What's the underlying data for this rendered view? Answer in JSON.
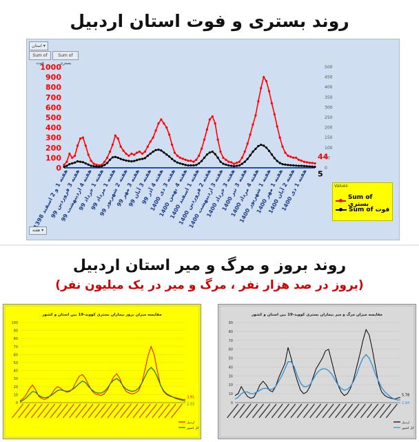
{
  "top": {
    "title": "روند بستری و فوت استان اردبیل",
    "filter_button": "استان ▾",
    "series_buttons": [
      "Sum of فوت",
      "Sum of بستری"
    ],
    "bottom_button": "هفته ▾",
    "legend": {
      "header": "Values",
      "items": [
        {
          "label": "Sum of بستری",
          "color": "#ff0000"
        },
        {
          "label": "Sum of فوت",
          "color": "#000000"
        }
      ]
    }
  },
  "chart_data": [
    {
      "type": "line",
      "title": "روند بستری و فوت استان اردبیل",
      "ylim_left": [
        0,
        1000
      ],
      "yticks_left": [
        0,
        100,
        200,
        300,
        400,
        500,
        600,
        700,
        800,
        900,
        1000
      ],
      "ylim_right": [
        0,
        500
      ],
      "yticks_right": [
        0,
        50,
        100,
        150,
        200,
        250,
        300,
        350,
        400,
        450,
        500
      ],
      "grid": false,
      "legend_position": "bottom-right",
      "x_tick_labels": [
        "1398 هفته 1 و 2 اسفند",
        "99 هفته 3 فروردین",
        "99 هفته 4 اردیبهشت",
        "99 هفته 1 خرداد",
        "99 هفته 1 مرداد",
        "99 هفته 2 شهریور",
        "99 هفته 3 مهر",
        "99 هفته 3 آبان",
        "99 هفته 4 آذر",
        "1400 هفته 3 دی",
        "1400 هفته 4 بهمن",
        "1400 هفته 1 اسفند",
        "1400 هفته 2 فروردین",
        "1400 هفته 3 اردیبهشت",
        "1400 هفته 3 خرداد",
        "1400 هفته 3 تیر",
        "1400 هفته 4 مرداد",
        "1400 هفته 1 شهریور",
        "1400 هفته 1 مهر",
        "1400 هفته 2 آبان",
        "1400 هفته 1 دی"
      ],
      "series": [
        {
          "name": "Sum of بستری",
          "axis": "left",
          "color": "#ff0000",
          "end_label": "44",
          "values": [
            30,
            60,
            140,
            100,
            120,
            220,
            290,
            300,
            220,
            130,
            70,
            40,
            30,
            25,
            30,
            60,
            100,
            160,
            230,
            320,
            290,
            210,
            170,
            140,
            120,
            140,
            130,
            150,
            160,
            140,
            160,
            210,
            260,
            300,
            370,
            440,
            480,
            440,
            400,
            330,
            230,
            150,
            120,
            100,
            90,
            80,
            70,
            70,
            60,
            80,
            120,
            190,
            280,
            380,
            480,
            510,
            440,
            280,
            160,
            100,
            80,
            60,
            55,
            40,
            50,
            60,
            100,
            160,
            240,
            330,
            430,
            520,
            660,
            790,
            900,
            860,
            760,
            640,
            530,
            410,
            300,
            210,
            150,
            120,
            110,
            100,
            100,
            80,
            70,
            60,
            55,
            50,
            48,
            44
          ]
        },
        {
          "name": "Sum of فوت",
          "axis": "right",
          "color": "#000000",
          "end_label": "5",
          "values": [
            5,
            10,
            18,
            22,
            26,
            32,
            30,
            28,
            22,
            16,
            10,
            8,
            6,
            5,
            8,
            14,
            24,
            40,
            52,
            54,
            50,
            44,
            40,
            36,
            34,
            32,
            34,
            38,
            42,
            44,
            48,
            60,
            70,
            80,
            88,
            90,
            86,
            76,
            66,
            56,
            44,
            34,
            26,
            22,
            18,
            14,
            12,
            12,
            12,
            14,
            22,
            34,
            50,
            66,
            76,
            80,
            68,
            50,
            30,
            20,
            16,
            12,
            10,
            8,
            10,
            12,
            20,
            30,
            44,
            62,
            80,
            94,
            108,
            114,
            110,
            100,
            84,
            66,
            48,
            34,
            24,
            18,
            16,
            14,
            13,
            12,
            11,
            10,
            10,
            9,
            8,
            7,
            6,
            5
          ]
        }
      ]
    },
    {
      "type": "line",
      "title": "مقایسه میزان بروز بیماران بستری کووید-19 بین استان و کشور",
      "ylim": [
        0,
        100
      ],
      "yticks": [
        0,
        10,
        20,
        30,
        40,
        50,
        60,
        70,
        80,
        90,
        100
      ],
      "grid": true,
      "legend_position": "bottom-right",
      "series": [
        {
          "name": "اردبیل",
          "color": "#ff0000",
          "end_label": "3.91",
          "values": [
            2,
            5,
            10,
            17,
            22,
            16,
            8,
            5,
            4,
            6,
            10,
            16,
            20,
            18,
            15,
            13,
            14,
            18,
            26,
            33,
            35,
            30,
            22,
            15,
            11,
            10,
            9,
            11,
            16,
            24,
            32,
            36,
            30,
            20,
            14,
            12,
            11,
            12,
            15,
            24,
            40,
            58,
            70,
            60,
            40,
            22,
            14,
            10,
            8,
            7,
            6,
            5,
            4,
            4
          ]
        },
        {
          "name": "کل کشور",
          "color": "#1f7a1f",
          "end_label": "2.33",
          "values": [
            1,
            3,
            6,
            10,
            14,
            13,
            9,
            7,
            6,
            7,
            9,
            12,
            15,
            16,
            15,
            14,
            15,
            17,
            20,
            24,
            27,
            25,
            20,
            16,
            13,
            12,
            12,
            14,
            18,
            24,
            28,
            30,
            27,
            21,
            17,
            15,
            14,
            15,
            18,
            24,
            32,
            40,
            44,
            40,
            32,
            22,
            15,
            11,
            9,
            7,
            5,
            4,
            3,
            2
          ]
        }
      ]
    },
    {
      "type": "line",
      "title": "مقایسه میزان مرگ و میر بیماران بستری کووید-19 بین استان و کشور",
      "ylim": [
        0,
        90
      ],
      "yticks": [
        0,
        10,
        20,
        30,
        40,
        50,
        60,
        70,
        80,
        90
      ],
      "grid": true,
      "legend_position": "bottom-right",
      "series": [
        {
          "name": "اردبیل",
          "color": "#000000",
          "end_label": "5.78",
          "values": [
            8,
            10,
            18,
            12,
            7,
            5,
            6,
            12,
            20,
            24,
            20,
            14,
            12,
            18,
            28,
            36,
            44,
            62,
            50,
            36,
            24,
            14,
            10,
            12,
            18,
            28,
            38,
            44,
            50,
            58,
            60,
            46,
            32,
            20,
            12,
            8,
            10,
            16,
            26,
            40,
            54,
            70,
            82,
            76,
            60,
            40,
            22,
            12,
            8,
            6,
            5,
            4,
            5,
            6
          ]
        },
        {
          "name": "کل کشور",
          "color": "#2b8fd8",
          "end_label": "2.94",
          "values": [
            4,
            6,
            10,
            12,
            12,
            10,
            10,
            12,
            14,
            16,
            16,
            15,
            15,
            18,
            24,
            30,
            38,
            46,
            46,
            40,
            30,
            22,
            18,
            18,
            20,
            26,
            32,
            36,
            38,
            38,
            36,
            32,
            26,
            20,
            16,
            14,
            15,
            18,
            24,
            32,
            42,
            50,
            54,
            50,
            42,
            32,
            24,
            17,
            12,
            9,
            6,
            4,
            3,
            3
          ]
        }
      ]
    }
  ],
  "bottom": {
    "title": "روند بروز و مرگ و میر استان اردبیل",
    "subtitle": "(بروز در صد هزار نفر ، مرگ و میر در یک میلیون نفر)"
  }
}
